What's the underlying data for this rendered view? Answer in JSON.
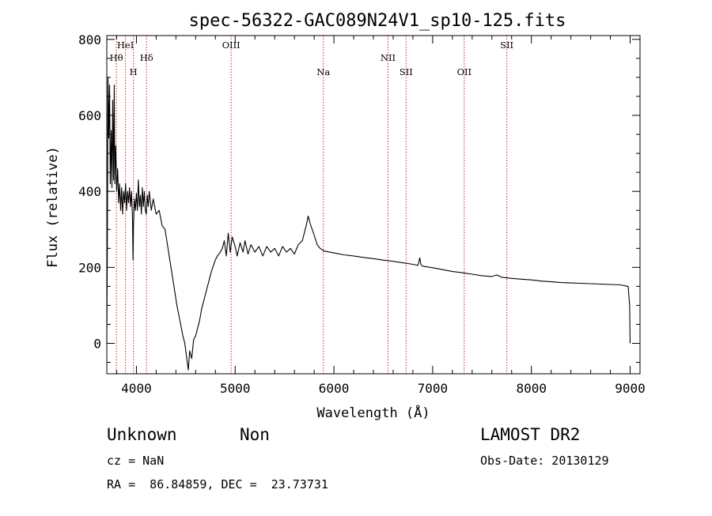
{
  "chart_data": {
    "type": "line",
    "title": "spec-56322-GAC089N24V1_sp10-125.fits",
    "xlabel": "Wavelength (Å)",
    "ylabel": "Flux (relative)",
    "xlim": [
      3700,
      9100
    ],
    "ylim": [
      -80,
      810
    ],
    "x_ticks": [
      4000,
      5000,
      6000,
      7000,
      8000,
      9000
    ],
    "y_ticks": [
      0,
      200,
      400,
      600,
      800
    ],
    "grid": false,
    "series": [
      {
        "points": [
          [
            3700,
            0
          ],
          [
            3705,
            220
          ],
          [
            3712,
            700
          ],
          [
            3720,
            540
          ],
          [
            3728,
            680
          ],
          [
            3735,
            420
          ],
          [
            3745,
            560
          ],
          [
            3752,
            410
          ],
          [
            3760,
            640
          ],
          [
            3768,
            430
          ],
          [
            3775,
            680
          ],
          [
            3782,
            420
          ],
          [
            3790,
            520
          ],
          [
            3800,
            400
          ],
          [
            3810,
            460
          ],
          [
            3820,
            370
          ],
          [
            3830,
            420
          ],
          [
            3840,
            350
          ],
          [
            3850,
            410
          ],
          [
            3860,
            340
          ],
          [
            3870,
            400
          ],
          [
            3880,
            370
          ],
          [
            3890,
            420
          ],
          [
            3900,
            350
          ],
          [
            3910,
            400
          ],
          [
            3920,
            370
          ],
          [
            3930,
            410
          ],
          [
            3940,
            360
          ],
          [
            3950,
            400
          ],
          [
            3960,
            330
          ],
          [
            3965,
            220
          ],
          [
            3970,
            310
          ],
          [
            3980,
            380
          ],
          [
            3990,
            350
          ],
          [
            4000,
            395
          ],
          [
            4010,
            350
          ],
          [
            4020,
            430
          ],
          [
            4030,
            360
          ],
          [
            4040,
            390
          ],
          [
            4050,
            340
          ],
          [
            4060,
            410
          ],
          [
            4070,
            360
          ],
          [
            4080,
            400
          ],
          [
            4090,
            350
          ],
          [
            4100,
            340
          ],
          [
            4110,
            390
          ],
          [
            4120,
            360
          ],
          [
            4130,
            400
          ],
          [
            4150,
            350
          ],
          [
            4170,
            380
          ],
          [
            4200,
            340
          ],
          [
            4230,
            350
          ],
          [
            4260,
            310
          ],
          [
            4290,
            300
          ],
          [
            4320,
            250
          ],
          [
            4350,
            200
          ],
          [
            4380,
            150
          ],
          [
            4410,
            100
          ],
          [
            4440,
            60
          ],
          [
            4470,
            20
          ],
          [
            4490,
            0
          ],
          [
            4510,
            -40
          ],
          [
            4525,
            -70
          ],
          [
            4540,
            -20
          ],
          [
            4560,
            -40
          ],
          [
            4580,
            10
          ],
          [
            4600,
            20
          ],
          [
            4620,
            40
          ],
          [
            4640,
            60
          ],
          [
            4660,
            90
          ],
          [
            4680,
            110
          ],
          [
            4700,
            130
          ],
          [
            4720,
            150
          ],
          [
            4740,
            170
          ],
          [
            4760,
            190
          ],
          [
            4780,
            205
          ],
          [
            4800,
            220
          ],
          [
            4820,
            230
          ],
          [
            4850,
            240
          ],
          [
            4870,
            250
          ],
          [
            4890,
            270
          ],
          [
            4910,
            230
          ],
          [
            4930,
            290
          ],
          [
            4950,
            240
          ],
          [
            4970,
            280
          ],
          [
            5000,
            255
          ],
          [
            5020,
            230
          ],
          [
            5050,
            265
          ],
          [
            5080,
            240
          ],
          [
            5100,
            270
          ],
          [
            5130,
            235
          ],
          [
            5160,
            260
          ],
          [
            5200,
            240
          ],
          [
            5240,
            255
          ],
          [
            5280,
            230
          ],
          [
            5320,
            255
          ],
          [
            5360,
            240
          ],
          [
            5400,
            250
          ],
          [
            5440,
            230
          ],
          [
            5480,
            255
          ],
          [
            5520,
            240
          ],
          [
            5560,
            250
          ],
          [
            5600,
            235
          ],
          [
            5640,
            260
          ],
          [
            5680,
            270
          ],
          [
            5700,
            290
          ],
          [
            5720,
            310
          ],
          [
            5740,
            335
          ],
          [
            5760,
            315
          ],
          [
            5780,
            300
          ],
          [
            5800,
            285
          ],
          [
            5830,
            260
          ],
          [
            5860,
            250
          ],
          [
            5900,
            243
          ],
          [
            6000,
            238
          ],
          [
            6100,
            233
          ],
          [
            6200,
            230
          ],
          [
            6300,
            226
          ],
          [
            6400,
            223
          ],
          [
            6500,
            219
          ],
          [
            6600,
            216
          ],
          [
            6700,
            212
          ],
          [
            6800,
            208
          ],
          [
            6850,
            205
          ],
          [
            6870,
            225
          ],
          [
            6880,
            208
          ],
          [
            6900,
            203
          ],
          [
            7000,
            199
          ],
          [
            7100,
            194
          ],
          [
            7200,
            189
          ],
          [
            7300,
            186
          ],
          [
            7400,
            182
          ],
          [
            7500,
            178
          ],
          [
            7600,
            176
          ],
          [
            7650,
            180
          ],
          [
            7700,
            174
          ],
          [
            7800,
            171
          ],
          [
            7900,
            169
          ],
          [
            8000,
            167
          ],
          [
            8100,
            164
          ],
          [
            8200,
            162
          ],
          [
            8300,
            160
          ],
          [
            8400,
            159
          ],
          [
            8500,
            158
          ],
          [
            8600,
            157
          ],
          [
            8700,
            156
          ],
          [
            8800,
            155
          ],
          [
            8900,
            154
          ],
          [
            8980,
            150
          ],
          [
            8995,
            100
          ],
          [
            9000,
            0
          ]
        ]
      }
    ],
    "lines": [
      {
        "label": "Hθ",
        "x": 3797,
        "label_row": 2
      },
      {
        "label": "HeI",
        "x": 3889,
        "label_row": 1
      },
      {
        "label": "H",
        "x": 3970,
        "label_row": 3
      },
      {
        "label": "Hδ",
        "x": 4102,
        "label_row": 2
      },
      {
        "label": "OIII",
        "x": 4959,
        "label_row": 1
      },
      {
        "label": "Na",
        "x": 5893,
        "label_row": 3
      },
      {
        "label": "NII",
        "x": 6548,
        "label_row": 2
      },
      {
        "label": "SII",
        "x": 6731,
        "label_row": 3
      },
      {
        "label": "OII",
        "x": 7320,
        "label_row": 3
      },
      {
        "label": "SII",
        "x": 7751,
        "label_row": 1
      }
    ]
  },
  "footer": {
    "object_class": "Unknown",
    "object_subclass": "Non",
    "survey": "LAMOST DR2",
    "cz": "cz = NaN",
    "obs_date": "Obs-Date: 20130129",
    "coords": "RA =  86.84859, DEC =  23.73731"
  },
  "colors": {
    "spectrum": "#000000",
    "line_markers": "#cc2222",
    "axes": "#000000"
  }
}
